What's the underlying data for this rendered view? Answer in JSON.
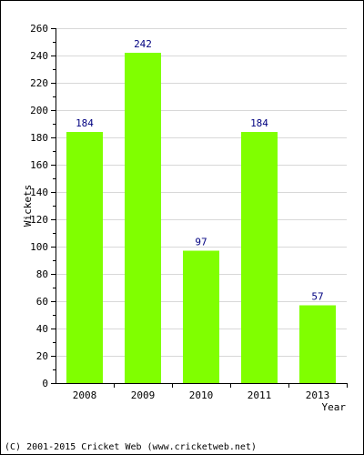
{
  "chart_data": {
    "type": "bar",
    "categories": [
      "2008",
      "2009",
      "2010",
      "2011",
      "2013"
    ],
    "values": [
      184,
      242,
      97,
      184,
      57
    ],
    "data_labels": [
      "184",
      "242",
      "97",
      "184",
      "57"
    ],
    "xlabel": "Year",
    "ylabel": "Wickets",
    "ylim": [
      0,
      260
    ],
    "yticks": [
      0,
      20,
      40,
      60,
      80,
      100,
      120,
      140,
      160,
      180,
      200,
      220,
      240,
      260
    ],
    "grid": true,
    "colors": {
      "bar": "#80ff00",
      "data_label": "#000080",
      "grid": "#d8d8d8",
      "axis": "#000000"
    }
  },
  "footer": "(C) 2001-2015 Cricket Web (www.cricketweb.net)"
}
